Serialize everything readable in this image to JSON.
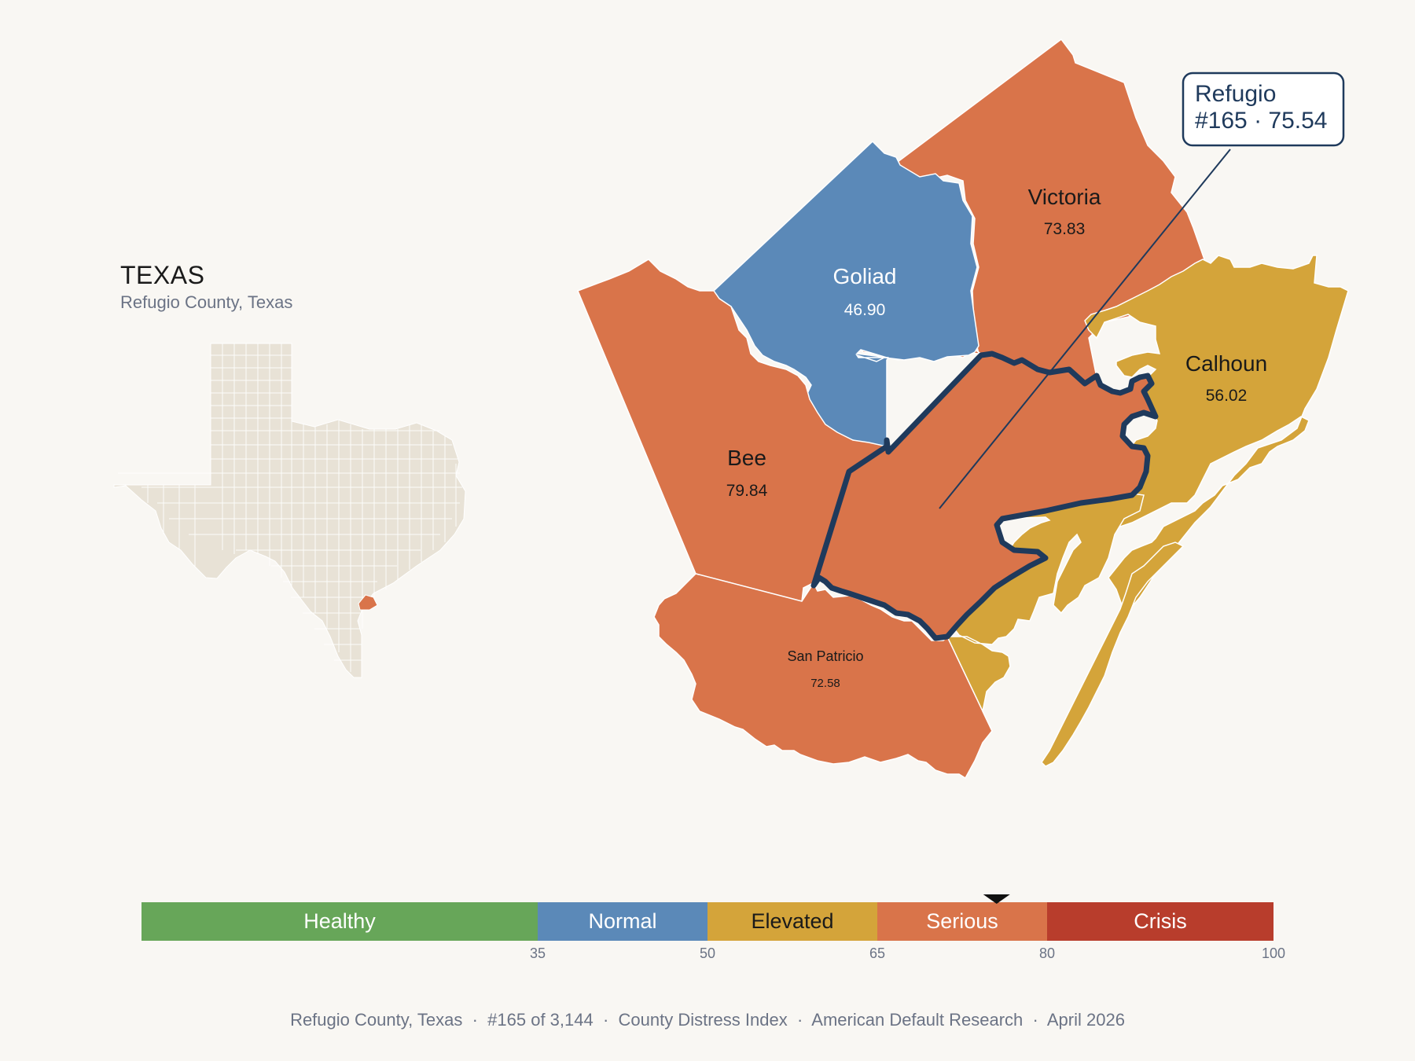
{
  "inset": {
    "state_title": "TEXAS",
    "subtitle": "Refugio County, Texas"
  },
  "counties": [
    {
      "id": "refugio",
      "name": "Refugio",
      "score": "75.54",
      "category": "Serious",
      "highlighted": true
    },
    {
      "id": "victoria",
      "name": "Victoria",
      "score": "73.83",
      "category": "Serious"
    },
    {
      "id": "goliad",
      "name": "Goliad",
      "score": "46.90",
      "category": "Normal"
    },
    {
      "id": "calhoun",
      "name": "Calhoun",
      "score": "56.02",
      "category": "Elevated"
    },
    {
      "id": "bee",
      "name": "Bee",
      "score": "79.84",
      "category": "Serious"
    },
    {
      "id": "san-patricio",
      "name": "San Patricio",
      "score": "72.58",
      "category": "Serious"
    },
    {
      "id": "aransas",
      "name": "",
      "score": "",
      "category": "Elevated"
    }
  ],
  "callout": {
    "line1": "Refugio",
    "line2": "#165 · 75.54"
  },
  "scale": {
    "segments": [
      {
        "label": "Healthy",
        "from": 0,
        "to": 35,
        "color": "#67a659"
      },
      {
        "label": "Normal",
        "from": 35,
        "to": 50,
        "color": "#5b89b8"
      },
      {
        "label": "Elevated",
        "from": 50,
        "to": 65,
        "color": "#d4a43a"
      },
      {
        "label": "Serious",
        "from": 65,
        "to": 80,
        "color": "#d9744a"
      },
      {
        "label": "Crisis",
        "from": 80,
        "to": 100,
        "color": "#b83d2c"
      }
    ],
    "ticks": [
      "35",
      "50",
      "65",
      "80",
      "100"
    ],
    "marker_value": 75.54
  },
  "colors": {
    "serious": "#d9744a",
    "normal": "#5b89b8",
    "elevated": "#d4a43a",
    "outline": "#1f3a5c",
    "inset_fill": "#e8e2d6"
  },
  "footer": {
    "county": "Refugio County, Texas",
    "rank": "#165 of 3,144",
    "index": "County Distress Index",
    "org": "American Default Research",
    "date": "April 2026"
  }
}
